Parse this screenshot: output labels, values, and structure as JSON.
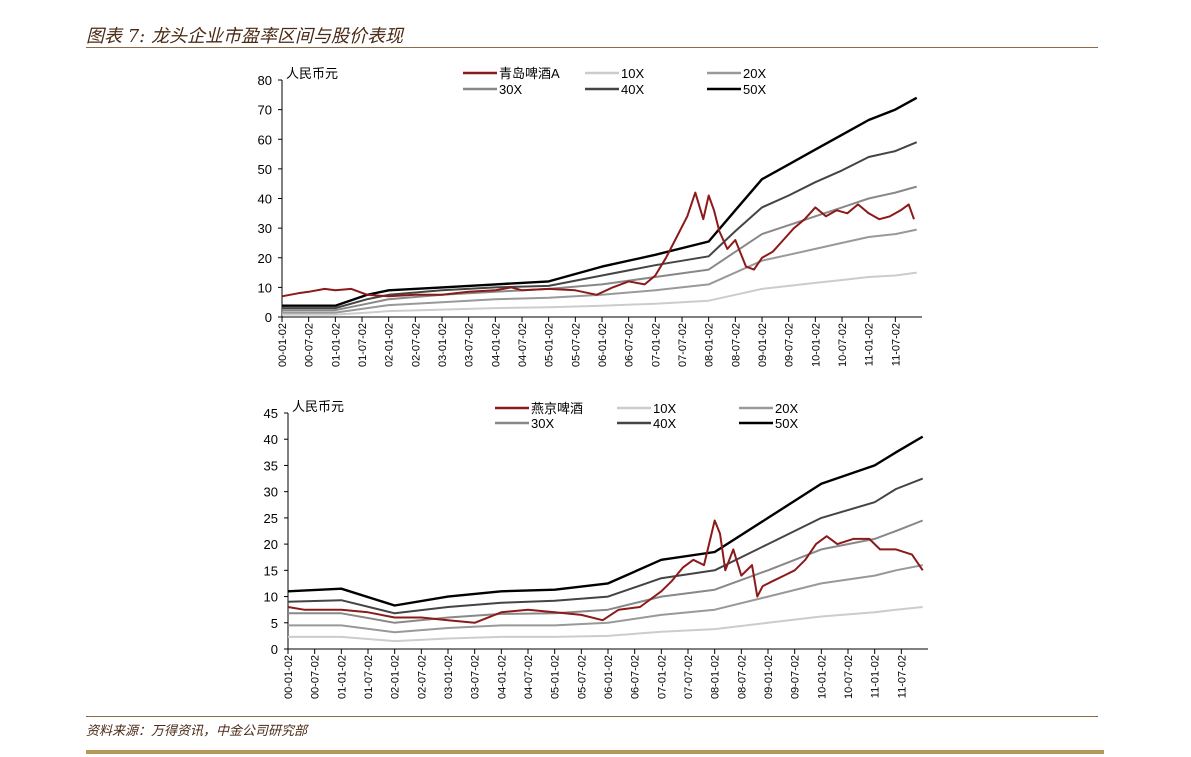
{
  "header": {
    "title": "图表 7: 龙头企业市盈率区间与股价表现"
  },
  "footer": {
    "source": "资料来源：万得资讯，中金公司研究部"
  },
  "colors": {
    "stock": "#8b1a1a",
    "10X": "#cccccc",
    "20X": "#999999",
    "30X": "#888888",
    "40X": "#444444",
    "50X": "#000000"
  },
  "chart_data": [
    {
      "type": "line",
      "ylabel": "人民币元",
      "ylim": [
        0,
        80
      ],
      "yticks": [
        0,
        10,
        20,
        30,
        40,
        50,
        60,
        70,
        80
      ],
      "xlim": [
        2000.0,
        2012.0
      ],
      "xtick_labels": [
        "00-01-02",
        "00-07-02",
        "01-01-02",
        "01-07-02",
        "02-01-02",
        "02-07-02",
        "03-01-02",
        "03-07-02",
        "04-01-02",
        "04-07-02",
        "05-01-02",
        "05-07-02",
        "06-01-02",
        "06-07-02",
        "07-01-02",
        "07-07-02",
        "08-01-02",
        "08-07-02",
        "09-01-02",
        "09-07-02",
        "10-01-02",
        "10-07-02",
        "11-01-02",
        "11-07-02"
      ],
      "legend_placement": "top",
      "series": [
        {
          "name": "青岛啤酒A",
          "key": "stock",
          "x": [
            2000.0,
            2000.3,
            2000.5,
            2000.8,
            2001.0,
            2001.3,
            2001.6,
            2002.0,
            2002.5,
            2003.0,
            2003.5,
            2004.0,
            2004.3,
            2004.5,
            2005.0,
            2005.5,
            2005.9,
            2006.2,
            2006.5,
            2006.8,
            2007.0,
            2007.2,
            2007.4,
            2007.6,
            2007.75,
            2007.9,
            2008.0,
            2008.1,
            2008.2,
            2008.35,
            2008.5,
            2008.7,
            2008.85,
            2009.0,
            2009.2,
            2009.4,
            2009.6,
            2009.8,
            2010.0,
            2010.2,
            2010.4,
            2010.6,
            2010.8,
            2011.0,
            2011.2,
            2011.4,
            2011.6,
            2011.75,
            2011.85
          ],
          "values": [
            7,
            8,
            8.5,
            9.5,
            9,
            9.5,
            7.5,
            7,
            7.5,
            7.5,
            8.5,
            9,
            10,
            9,
            9.5,
            9,
            7.5,
            10,
            12,
            11,
            14,
            20,
            27,
            34,
            42,
            33,
            41,
            36,
            29,
            23,
            26,
            17,
            16,
            20,
            22,
            26,
            30,
            33,
            37,
            34,
            36,
            35,
            38,
            35,
            33,
            34,
            36,
            38,
            33
          ]
        },
        {
          "name": "10X",
          "key": "10X",
          "x": [
            2000.0,
            2001.0,
            2001.6,
            2002.0,
            2003.0,
            2004.0,
            2005.0,
            2006.0,
            2007.0,
            2008.0,
            2008.5,
            2009.0,
            2009.5,
            2010.0,
            2010.5,
            2011.0,
            2011.5,
            2011.9
          ],
          "values": [
            0.8,
            0.8,
            1.5,
            2,
            2.5,
            3,
            3.3,
            3.8,
            4.5,
            5.5,
            7.5,
            9.5,
            10.5,
            11.5,
            12.5,
            13.5,
            14,
            15
          ]
        },
        {
          "name": "20X",
          "key": "20X",
          "x": [
            2000.0,
            2001.0,
            2001.6,
            2002.0,
            2003.0,
            2004.0,
            2005.0,
            2006.0,
            2007.0,
            2008.0,
            2008.5,
            2009.0,
            2009.5,
            2010.0,
            2010.5,
            2011.0,
            2011.5,
            2011.9
          ],
          "values": [
            1.5,
            1.5,
            3,
            4,
            5,
            6,
            6.5,
            7.5,
            9,
            11,
            15,
            19,
            21,
            23,
            25,
            27,
            28,
            29.5
          ]
        },
        {
          "name": "30X",
          "key": "30X",
          "x": [
            2000.0,
            2001.0,
            2001.6,
            2002.0,
            2003.0,
            2004.0,
            2005.0,
            2006.0,
            2007.0,
            2008.0,
            2008.5,
            2009.0,
            2009.5,
            2010.0,
            2010.5,
            2011.0,
            2011.5,
            2011.9
          ],
          "values": [
            2.3,
            2.3,
            4.5,
            6,
            7.5,
            8.5,
            9.5,
            11,
            13.5,
            16,
            22,
            28,
            31,
            34,
            37,
            40,
            42,
            44
          ]
        },
        {
          "name": "40X",
          "key": "40X",
          "x": [
            2000.0,
            2001.0,
            2001.6,
            2002.0,
            2003.0,
            2004.0,
            2005.0,
            2006.0,
            2007.0,
            2008.0,
            2008.5,
            2009.0,
            2009.5,
            2010.0,
            2010.5,
            2011.0,
            2011.5,
            2011.9
          ],
          "values": [
            3,
            3,
            6,
            7.5,
            9,
            10,
            10.5,
            14,
            17.5,
            20.5,
            29,
            37,
            41,
            45.5,
            49.5,
            54,
            56,
            59
          ]
        },
        {
          "name": "50X",
          "key": "50X",
          "x": [
            2000.0,
            2001.0,
            2001.6,
            2002.0,
            2003.0,
            2004.0,
            2005.0,
            2006.0,
            2007.0,
            2008.0,
            2008.5,
            2009.0,
            2009.5,
            2010.0,
            2010.5,
            2011.0,
            2011.5,
            2011.9
          ],
          "values": [
            3.8,
            3.8,
            7.5,
            9,
            10,
            11,
            12,
            17,
            21,
            25.5,
            36,
            46.5,
            51.5,
            56.5,
            61.5,
            66.5,
            70,
            74
          ]
        }
      ]
    },
    {
      "type": "line",
      "ylabel": "人民币元",
      "ylim": [
        0,
        45
      ],
      "yticks": [
        0,
        5,
        10,
        15,
        20,
        25,
        30,
        35,
        40,
        45
      ],
      "xlim": [
        2000.0,
        2012.0
      ],
      "xtick_labels": [
        "00-01-02",
        "00-07-02",
        "01-01-02",
        "01-07-02",
        "02-01-02",
        "02-07-02",
        "03-01-02",
        "03-07-02",
        "04-01-02",
        "04-07-02",
        "05-01-02",
        "05-07-02",
        "06-01-02",
        "06-07-02",
        "07-01-02",
        "07-07-02",
        "08-01-02",
        "08-07-02",
        "09-01-02",
        "09-07-02",
        "10-01-02",
        "10-07-02",
        "11-01-02",
        "11-07-02"
      ],
      "legend_placement": "top",
      "series": [
        {
          "name": "燕京啤酒",
          "key": "stock",
          "x": [
            2000.0,
            2000.3,
            2000.6,
            2001.0,
            2001.5,
            2002.0,
            2002.5,
            2003.0,
            2003.5,
            2004.0,
            2004.5,
            2005.0,
            2005.5,
            2005.9,
            2006.2,
            2006.6,
            2007.0,
            2007.2,
            2007.4,
            2007.6,
            2007.8,
            2008.0,
            2008.1,
            2008.2,
            2008.35,
            2008.5,
            2008.7,
            2008.8,
            2008.9,
            2009.1,
            2009.3,
            2009.5,
            2009.7,
            2009.9,
            2010.1,
            2010.3,
            2010.6,
            2010.9,
            2011.1,
            2011.4,
            2011.7,
            2011.9
          ],
          "values": [
            8,
            7.5,
            7.5,
            7.5,
            7,
            6,
            6,
            5.5,
            5,
            7,
            7.5,
            7,
            6.5,
            5.5,
            7.5,
            8,
            11,
            13,
            15.5,
            17,
            16,
            24.5,
            22,
            15,
            19,
            14,
            16,
            10,
            12,
            13,
            14,
            15,
            17,
            20,
            21.5,
            20,
            21,
            21,
            19,
            19,
            18,
            15
          ]
        },
        {
          "name": "10X",
          "key": "10X",
          "x": [
            2000.0,
            2001.0,
            2002.0,
            2003.0,
            2004.0,
            2005.0,
            2006.0,
            2007.0,
            2008.0,
            2009.0,
            2010.0,
            2011.0,
            2011.4,
            2011.9
          ],
          "values": [
            2.3,
            2.3,
            1.5,
            2,
            2.3,
            2.3,
            2.5,
            3.3,
            3.8,
            5,
            6.2,
            7,
            7.5,
            8
          ]
        },
        {
          "name": "20X",
          "key": "20X",
          "x": [
            2000.0,
            2001.0,
            2002.0,
            2003.0,
            2004.0,
            2005.0,
            2006.0,
            2007.0,
            2008.0,
            2009.0,
            2010.0,
            2011.0,
            2011.4,
            2011.9
          ],
          "values": [
            4.5,
            4.5,
            3.2,
            4,
            4.5,
            4.5,
            5,
            6.5,
            7.5,
            10,
            12.5,
            14,
            15,
            16
          ]
        },
        {
          "name": "30X",
          "key": "30X",
          "x": [
            2000.0,
            2001.0,
            2002.0,
            2003.0,
            2004.0,
            2005.0,
            2006.0,
            2007.0,
            2008.0,
            2009.0,
            2010.0,
            2011.0,
            2011.4,
            2011.9
          ],
          "values": [
            6.8,
            6.8,
            5,
            6,
            6.7,
            6.8,
            7.5,
            10,
            11.3,
            15,
            19,
            21,
            22.5,
            24.5
          ]
        },
        {
          "name": "40X",
          "key": "40X",
          "x": [
            2000.0,
            2001.0,
            2002.0,
            2003.0,
            2004.0,
            2005.0,
            2006.0,
            2007.0,
            2008.0,
            2009.0,
            2010.0,
            2011.0,
            2011.4,
            2011.9
          ],
          "values": [
            9,
            9.3,
            6.8,
            8,
            8.8,
            9.2,
            10,
            13.5,
            15,
            20,
            25,
            28,
            30.5,
            32.5
          ]
        },
        {
          "name": "50X",
          "key": "50X",
          "x": [
            2000.0,
            2001.0,
            2002.0,
            2003.0,
            2004.0,
            2005.0,
            2006.0,
            2007.0,
            2008.0,
            2009.0,
            2010.0,
            2011.0,
            2011.4,
            2011.9
          ],
          "values": [
            11,
            11.5,
            8.3,
            10,
            11,
            11.3,
            12.5,
            17,
            18.5,
            25,
            31.5,
            35,
            37.5,
            40.5
          ]
        }
      ]
    }
  ]
}
